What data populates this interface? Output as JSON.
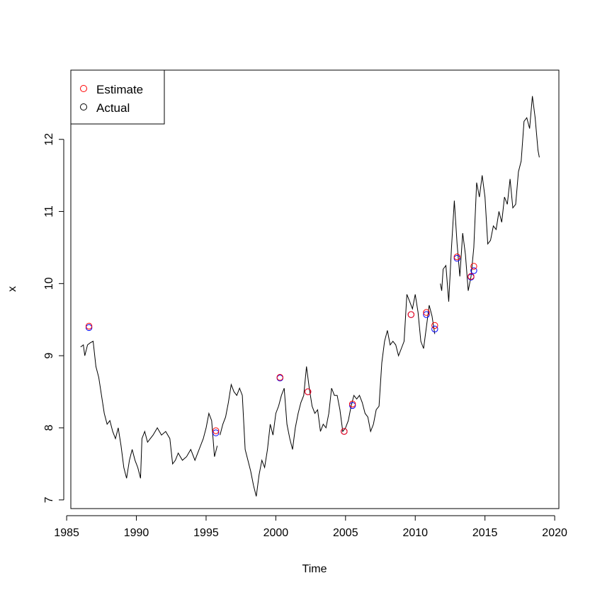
{
  "chart_data": {
    "type": "line",
    "title": "",
    "xlabel": "Time",
    "ylabel": "x",
    "xlim": [
      1985.3,
      2020.3
    ],
    "ylim": [
      6.88,
      12.96
    ],
    "x_ticks": [
      1985,
      1990,
      1995,
      2000,
      2005,
      2010,
      2015,
      2020
    ],
    "y_ticks": [
      7,
      8,
      9,
      10,
      11,
      12
    ],
    "grid": false,
    "legend": {
      "position": "top-left",
      "entries": [
        {
          "label": "Estimate",
          "color": "#ff0000",
          "marker": "open-circle"
        },
        {
          "label": "Actual",
          "color": "#000000",
          "marker": "open-circle"
        }
      ]
    },
    "series": [
      {
        "color": "#000000",
        "segments": [
          [
            [
              1986.0,
              9.12
            ],
            [
              1986.2,
              9.15
            ],
            [
              1986.3,
              9.0
            ],
            [
              1986.5,
              9.15
            ],
            [
              1986.7,
              9.18
            ],
            [
              1986.9,
              9.2
            ],
            [
              1987.1,
              8.85
            ],
            [
              1987.3,
              8.7
            ],
            [
              1987.5,
              8.45
            ],
            [
              1987.7,
              8.2
            ],
            [
              1987.9,
              8.05
            ],
            [
              1988.1,
              8.1
            ],
            [
              1988.3,
              7.95
            ],
            [
              1988.5,
              7.85
            ],
            [
              1988.7,
              8.0
            ],
            [
              1988.9,
              7.75
            ],
            [
              1989.1,
              7.45
            ],
            [
              1989.3,
              7.3
            ],
            [
              1989.5,
              7.55
            ],
            [
              1989.7,
              7.7
            ],
            [
              1989.9,
              7.55
            ],
            [
              1990.1,
              7.45
            ],
            [
              1990.3,
              7.3
            ],
            [
              1990.4,
              7.85
            ],
            [
              1990.6,
              7.95
            ],
            [
              1990.8,
              7.8
            ],
            [
              1991.0,
              7.85
            ],
            [
              1991.2,
              7.9
            ],
            [
              1991.5,
              8.0
            ],
            [
              1991.8,
              7.9
            ],
            [
              1992.1,
              7.95
            ],
            [
              1992.4,
              7.85
            ],
            [
              1992.6,
              7.5
            ],
            [
              1992.8,
              7.55
            ],
            [
              1993.0,
              7.65
            ],
            [
              1993.3,
              7.55
            ],
            [
              1993.6,
              7.6
            ],
            [
              1993.9,
              7.7
            ],
            [
              1994.2,
              7.55
            ],
            [
              1994.5,
              7.7
            ],
            [
              1994.8,
              7.85
            ],
            [
              1995.0,
              8.0
            ],
            [
              1995.2,
              8.2
            ],
            [
              1995.4,
              8.1
            ],
            [
              1995.6,
              7.6
            ],
            [
              1995.8,
              7.75
            ]
          ],
          [
            [
              1996.0,
              7.9
            ],
            [
              1996.2,
              8.05
            ],
            [
              1996.4,
              8.15
            ],
            [
              1996.6,
              8.35
            ],
            [
              1996.8,
              8.6
            ],
            [
              1997.0,
              8.5
            ],
            [
              1997.2,
              8.45
            ],
            [
              1997.4,
              8.55
            ],
            [
              1997.6,
              8.45
            ],
            [
              1997.8,
              7.7
            ],
            [
              1998.0,
              7.55
            ],
            [
              1998.2,
              7.4
            ],
            [
              1998.4,
              7.2
            ],
            [
              1998.6,
              7.05
            ],
            [
              1998.8,
              7.35
            ],
            [
              1999.0,
              7.55
            ],
            [
              1999.2,
              7.45
            ],
            [
              1999.4,
              7.7
            ],
            [
              1999.6,
              8.05
            ],
            [
              1999.8,
              7.9
            ],
            [
              2000.0,
              8.2
            ],
            [
              2000.2,
              8.3
            ],
            [
              2000.4,
              8.45
            ],
            [
              2000.6,
              8.55
            ],
            [
              2000.8,
              8.05
            ],
            [
              2001.0,
              7.85
            ],
            [
              2001.2,
              7.7
            ],
            [
              2001.4,
              8.0
            ],
            [
              2001.6,
              8.2
            ],
            [
              2001.8,
              8.35
            ],
            [
              2002.0,
              8.45
            ],
            [
              2002.2,
              8.85
            ],
            [
              2002.4,
              8.55
            ],
            [
              2002.6,
              8.3
            ],
            [
              2002.8,
              8.2
            ],
            [
              2003.0,
              8.25
            ],
            [
              2003.2,
              7.95
            ],
            [
              2003.4,
              8.05
            ],
            [
              2003.6,
              8.0
            ],
            [
              2003.8,
              8.2
            ],
            [
              2004.0,
              8.55
            ],
            [
              2004.2,
              8.45
            ],
            [
              2004.4,
              8.45
            ],
            [
              2004.6,
              8.25
            ],
            [
              2004.8,
              7.95
            ],
            [
              2005.0,
              8.0
            ],
            [
              2005.2,
              8.1
            ],
            [
              2005.4,
              8.3
            ],
            [
              2005.6,
              8.45
            ],
            [
              2005.8,
              8.4
            ],
            [
              2006.0,
              8.45
            ],
            [
              2006.2,
              8.35
            ],
            [
              2006.4,
              8.2
            ],
            [
              2006.6,
              8.15
            ],
            [
              2006.8,
              7.95
            ],
            [
              2007.0,
              8.05
            ],
            [
              2007.2,
              8.25
            ],
            [
              2007.4,
              8.3
            ],
            [
              2007.6,
              8.9
            ],
            [
              2007.8,
              9.2
            ],
            [
              2008.0,
              9.35
            ],
            [
              2008.2,
              9.15
            ],
            [
              2008.4,
              9.2
            ],
            [
              2008.6,
              9.15
            ],
            [
              2008.8,
              9.0
            ],
            [
              2009.0,
              9.1
            ],
            [
              2009.2,
              9.2
            ],
            [
              2009.4,
              9.85
            ],
            [
              2009.6,
              9.75
            ],
            [
              2009.8,
              9.65
            ],
            [
              2010.0,
              9.85
            ],
            [
              2010.2,
              9.6
            ],
            [
              2010.4,
              9.2
            ],
            [
              2010.6,
              9.1
            ],
            [
              2010.8,
              9.4
            ],
            [
              2011.0,
              9.7
            ],
            [
              2011.2,
              9.55
            ],
            [
              2011.4,
              9.3
            ]
          ],
          [
            [
              2011.8,
              10.0
            ],
            [
              2011.9,
              9.9
            ],
            [
              2012.0,
              10.2
            ],
            [
              2012.2,
              10.25
            ],
            [
              2012.4,
              9.75
            ],
            [
              2012.6,
              10.5
            ],
            [
              2012.8,
              11.15
            ],
            [
              2013.0,
              10.55
            ],
            [
              2013.2,
              10.1
            ],
            [
              2013.4,
              10.7
            ],
            [
              2013.6,
              10.4
            ],
            [
              2013.8,
              9.9
            ],
            [
              2014.0,
              10.1
            ],
            [
              2014.2,
              10.5
            ],
            [
              2014.4,
              11.4
            ],
            [
              2014.6,
              11.2
            ],
            [
              2014.8,
              11.5
            ],
            [
              2015.0,
              11.2
            ],
            [
              2015.2,
              10.55
            ],
            [
              2015.4,
              10.6
            ],
            [
              2015.6,
              10.8
            ],
            [
              2015.8,
              10.75
            ],
            [
              2016.0,
              11.0
            ],
            [
              2016.2,
              10.85
            ],
            [
              2016.4,
              11.2
            ],
            [
              2016.6,
              11.1
            ],
            [
              2016.8,
              11.45
            ],
            [
              2017.0,
              11.05
            ],
            [
              2017.2,
              11.1
            ],
            [
              2017.4,
              11.55
            ],
            [
              2017.6,
              11.7
            ],
            [
              2017.8,
              12.25
            ],
            [
              2018.0,
              12.3
            ],
            [
              2018.2,
              12.15
            ],
            [
              2018.4,
              12.6
            ],
            [
              2018.6,
              12.3
            ],
            [
              2018.8,
              11.85
            ],
            [
              2018.9,
              11.75
            ]
          ]
        ]
      }
    ],
    "points": {
      "estimate_color": "#ff0000",
      "actual_color": "#0000ff",
      "items": [
        {
          "x": 1986.6,
          "estimate": 9.41,
          "actual": 9.39
        },
        {
          "x": 1995.7,
          "estimate": 7.96,
          "actual": 7.93
        },
        {
          "x": 2000.3,
          "estimate": 8.7,
          "actual": 8.69
        },
        {
          "x": 2002.3,
          "estimate": 8.5,
          "actual": 8.5
        },
        {
          "x": 2004.9,
          "estimate": 7.95,
          "actual": 7.95
        },
        {
          "x": 2005.5,
          "estimate": 8.33,
          "actual": 8.31
        },
        {
          "x": 2009.7,
          "estimate": 9.57,
          "actual": 9.57
        },
        {
          "x": 2010.8,
          "estimate": 9.6,
          "actual": 9.57
        },
        {
          "x": 2011.4,
          "estimate": 9.42,
          "actual": 9.37
        },
        {
          "x": 2013.0,
          "estimate": 10.37,
          "actual": 10.35
        },
        {
          "x": 2014.0,
          "estimate": 10.1,
          "actual": 10.09
        },
        {
          "x": 2014.2,
          "estimate": 10.24,
          "actual": 10.18
        }
      ]
    }
  }
}
